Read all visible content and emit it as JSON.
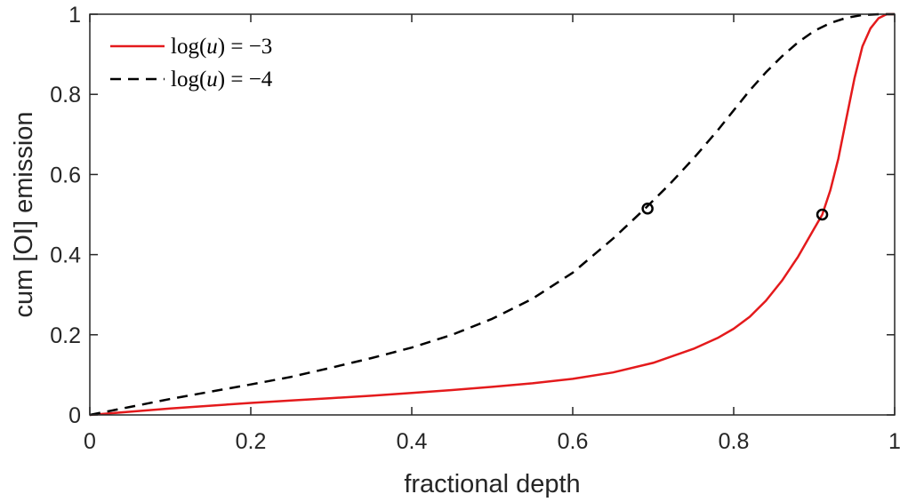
{
  "chart_data": {
    "type": "line",
    "title": "",
    "xlabel": "fractional depth",
    "ylabel": "cum [OI] emission",
    "xlim": [
      0,
      1
    ],
    "ylim": [
      0,
      1
    ],
    "xticks": [
      "0",
      "0.2",
      "0.4",
      "0.6",
      "0.8",
      "1"
    ],
    "yticks": [
      "0",
      "0.2",
      "0.4",
      "0.6",
      "0.8",
      "1"
    ],
    "grid": false,
    "legend_position": "top-left",
    "series": [
      {
        "name": "log(u) = −3",
        "legend_base": "log(",
        "legend_var": "u",
        "legend_rest": ") = −3",
        "color": "#e41a1c",
        "dash": "solid",
        "x": [
          0,
          0.05,
          0.1,
          0.15,
          0.2,
          0.25,
          0.3,
          0.35,
          0.4,
          0.45,
          0.5,
          0.55,
          0.6,
          0.65,
          0.7,
          0.75,
          0.78,
          0.8,
          0.82,
          0.84,
          0.86,
          0.88,
          0.9,
          0.91,
          0.92,
          0.93,
          0.94,
          0.95,
          0.96,
          0.97,
          0.98,
          0.99,
          1.0
        ],
        "y": [
          0,
          0.008,
          0.016,
          0.023,
          0.03,
          0.036,
          0.042,
          0.048,
          0.055,
          0.062,
          0.07,
          0.079,
          0.09,
          0.106,
          0.13,
          0.165,
          0.192,
          0.215,
          0.245,
          0.285,
          0.335,
          0.395,
          0.465,
          0.5,
          0.56,
          0.64,
          0.74,
          0.84,
          0.92,
          0.965,
          0.99,
          1.0,
          1.0
        ]
      },
      {
        "name": "log(u) = −4",
        "legend_base": "log(",
        "legend_var": "u",
        "legend_rest": ") = −4",
        "color": "#000000",
        "dash": "dashed",
        "x": [
          0,
          0.05,
          0.1,
          0.15,
          0.2,
          0.25,
          0.3,
          0.35,
          0.4,
          0.45,
          0.5,
          0.55,
          0.6,
          0.65,
          0.69,
          0.72,
          0.75,
          0.78,
          0.8,
          0.82,
          0.84,
          0.86,
          0.88,
          0.9,
          0.92,
          0.94,
          0.96,
          0.98,
          1.0
        ],
        "y": [
          0,
          0.02,
          0.04,
          0.058,
          0.076,
          0.095,
          0.118,
          0.142,
          0.168,
          0.2,
          0.24,
          0.29,
          0.355,
          0.44,
          0.515,
          0.575,
          0.64,
          0.71,
          0.76,
          0.81,
          0.855,
          0.895,
          0.93,
          0.958,
          0.978,
          0.991,
          0.998,
          1.0,
          1.0
        ]
      }
    ],
    "markers": [
      {
        "series": "log(u) = −4",
        "x": 0.693,
        "y": 0.515,
        "shape": "circle"
      },
      {
        "series": "log(u) = −3",
        "x": 0.91,
        "y": 0.5,
        "shape": "circle"
      }
    ]
  }
}
